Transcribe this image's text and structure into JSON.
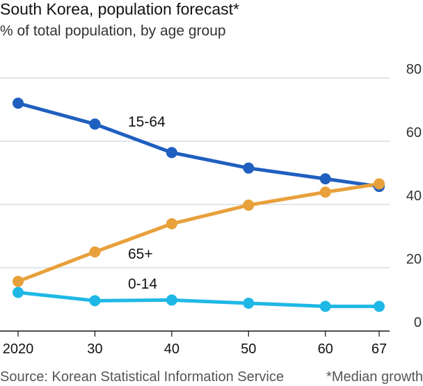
{
  "header": {
    "title": "South Korea, population forecast*",
    "subtitle": "% of total population, by age group"
  },
  "footer": {
    "source": "Source: Korean Statistical Information Service",
    "note": "*Median growth"
  },
  "chart_data": {
    "type": "line",
    "title": "South Korea, population forecast*",
    "subtitle": "% of total population, by age group",
    "xlabel": "",
    "ylabel": "",
    "x": [
      2020,
      2030,
      2040,
      2050,
      2060,
      2067
    ],
    "x_tick_labels": [
      "2020",
      "30",
      "40",
      "50",
      "60",
      "67"
    ],
    "ylim": [
      0,
      80
    ],
    "y_ticks": [
      0,
      20,
      40,
      60,
      80
    ],
    "grid": "horizontal",
    "y_axis_position": "right",
    "series": [
      {
        "name": "15-64",
        "color": "#1f5fbf",
        "values": [
          72,
          65.4,
          56.4,
          51.5,
          48.1,
          45.7
        ]
      },
      {
        "name": "65+",
        "color": "#e8a03a",
        "values": [
          15.7,
          25.0,
          33.9,
          39.8,
          43.9,
          46.5
        ]
      },
      {
        "name": "0-14",
        "color": "#1fb8e6",
        "values": [
          12.2,
          9.6,
          9.8,
          8.8,
          7.8,
          7.8
        ]
      }
    ]
  }
}
